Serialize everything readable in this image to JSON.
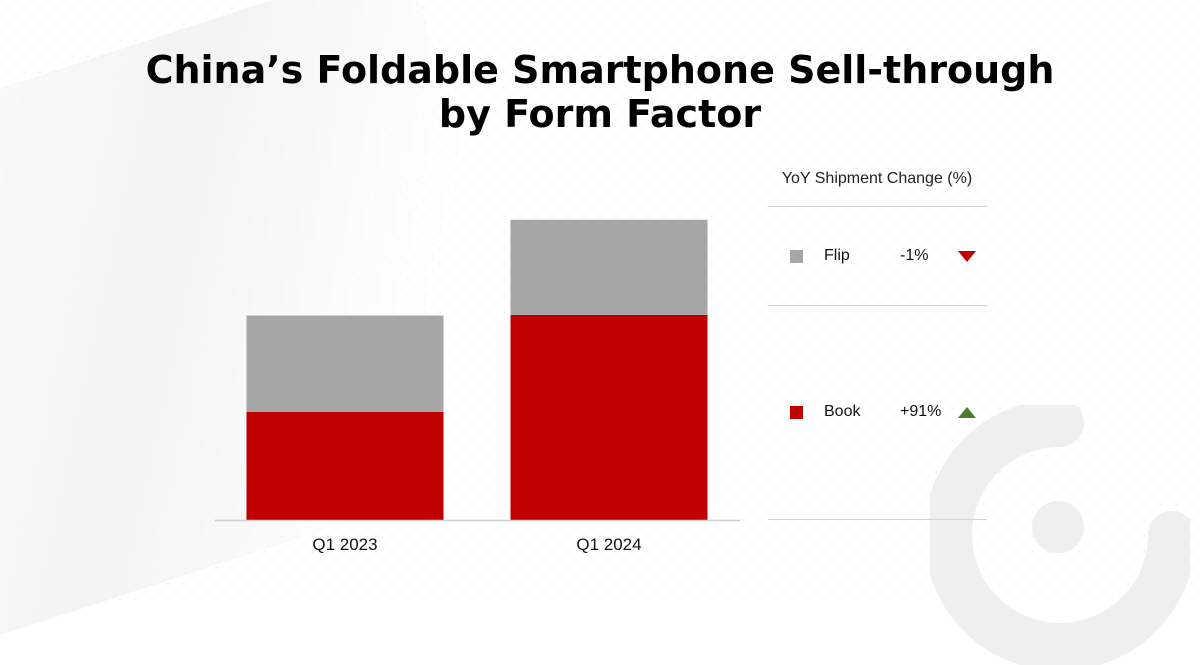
{
  "chart_data": {
    "type": "bar",
    "stacked": true,
    "title": "China’s Foldable Smartphone Sell-through by Form Factor",
    "title_lines": [
      "China’s Foldable Smartphone Sell-through",
      "by Form Factor"
    ],
    "categories": [
      "Q1 2023",
      "Q1 2024"
    ],
    "series": [
      {
        "name": "Book",
        "color": "#c00000",
        "values": [
          47.2,
          89.5
        ]
      },
      {
        "name": "Flip",
        "color": "#a6a6a6",
        "values": [
          42.0,
          41.5
        ]
      }
    ],
    "ylim": [
      0,
      137
    ],
    "xlabel": "",
    "ylabel": "",
    "grid": false,
    "legend": {
      "header": "YoY Shipment Change (%)",
      "placement": "right",
      "items": [
        {
          "name": "Flip",
          "change": "-1%",
          "direction": "down",
          "color": "#a6a6a6",
          "arrow_color": "#c00000"
        },
        {
          "name": "Book",
          "change": "+91%",
          "direction": "up",
          "color": "#c00000",
          "arrow_color": "#4b7d2a"
        }
      ]
    }
  },
  "brand": {
    "logo": "counterpoint-logo",
    "logo_color": "#efefef"
  }
}
